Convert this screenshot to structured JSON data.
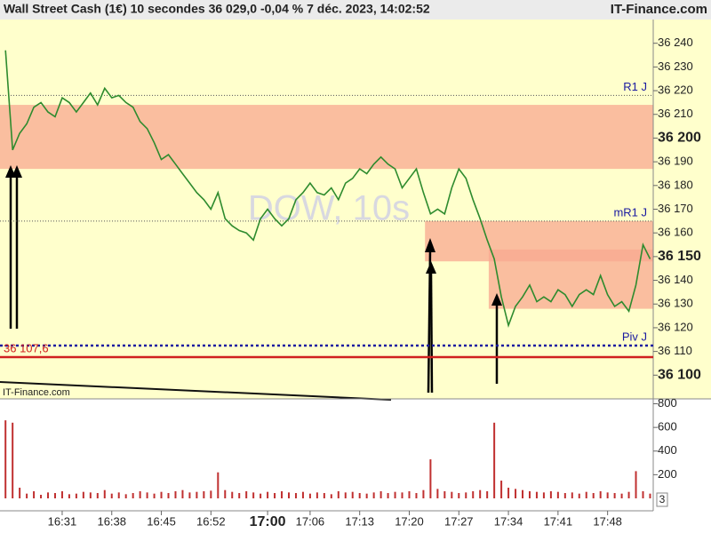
{
  "chart_data": {
    "type": "line",
    "title": "Wall Street Cash (1€) 10 secondes 36 029,0 -0,04 % 7 déc. 2023, 14:02:52",
    "source": "IT-Finance.com",
    "credit": "IT-Finance.com",
    "watermark": "DOW, 10s",
    "color": "#2e8b2e",
    "x": [
      "16:23",
      "16:24",
      "16:25",
      "16:26",
      "16:27",
      "16:28",
      "16:29",
      "16:30",
      "16:31",
      "16:32",
      "16:33",
      "16:34",
      "16:35",
      "16:36",
      "16:37",
      "16:38",
      "16:39",
      "16:40",
      "16:41",
      "16:42",
      "16:43",
      "16:44",
      "16:45",
      "16:46",
      "16:47",
      "16:48",
      "16:49",
      "16:50",
      "16:51",
      "16:52",
      "16:53",
      "16:54",
      "16:55",
      "16:56",
      "16:57",
      "16:58",
      "16:59",
      "17:00",
      "17:01",
      "17:02",
      "17:03",
      "17:04",
      "17:05",
      "17:06",
      "17:07",
      "17:08",
      "17:09",
      "17:10",
      "17:11",
      "17:12",
      "17:13",
      "17:14",
      "17:15",
      "17:16",
      "17:17",
      "17:18",
      "17:19",
      "17:20",
      "17:21",
      "17:22",
      "17:23",
      "17:24",
      "17:25",
      "17:26",
      "17:27",
      "17:28",
      "17:29",
      "17:30",
      "17:31",
      "17:32",
      "17:33",
      "17:34",
      "17:35",
      "17:36",
      "17:37",
      "17:38",
      "17:39",
      "17:40",
      "17:41",
      "17:42",
      "17:43",
      "17:44",
      "17:45",
      "17:46",
      "17:47",
      "17:48",
      "17:49",
      "17:50",
      "17:51",
      "17:52",
      "17:53",
      "17:54"
    ],
    "values": [
      36237,
      36195,
      36202,
      36206,
      36213,
      36215,
      36211,
      36209,
      36217,
      36215,
      36211,
      36215,
      36219,
      36214,
      36221,
      36217,
      36218,
      36215,
      36213,
      36207,
      36204,
      36198,
      36191,
      36193,
      36189,
      36185,
      36181,
      36177,
      36174,
      36170,
      36177,
      36166,
      36163,
      36161,
      36160,
      36157,
      36166,
      36170,
      36166,
      36163,
      36166,
      36174,
      36177,
      36181,
      36177,
      36176,
      36179,
      36174,
      36181,
      36183,
      36187,
      36185,
      36189,
      36192,
      36189,
      36187,
      36179,
      36183,
      36187,
      36177,
      36168,
      36170,
      36168,
      36179,
      36187,
      36183,
      36174,
      36166,
      36157,
      36149,
      36133,
      36121,
      36129,
      36133,
      36138,
      36131,
      36133,
      36131,
      36136,
      36134,
      36129,
      36134,
      36136,
      36134,
      36142,
      36134,
      36129,
      36131,
      36127,
      36138,
      36155,
      36149
    ],
    "ylim": [
      36090,
      36250
    ],
    "yticks": [
      {
        "value": 36240,
        "label": "36 240"
      },
      {
        "value": 36230,
        "label": "36 230"
      },
      {
        "value": 36220,
        "label": "36 220"
      },
      {
        "value": 36210,
        "label": "36 210"
      },
      {
        "value": 36200,
        "label": "36 200"
      },
      {
        "value": 36190,
        "label": "36 190"
      },
      {
        "value": 36180,
        "label": "36 180"
      },
      {
        "value": 36170,
        "label": "36 170"
      },
      {
        "value": 36160,
        "label": "36 160"
      },
      {
        "value": 36150,
        "label": "36 150"
      },
      {
        "value": 36140,
        "label": "36 140"
      },
      {
        "value": 36130,
        "label": "36 130"
      },
      {
        "value": 36120,
        "label": "36 120"
      },
      {
        "value": 36110,
        "label": "36 110"
      },
      {
        "value": 36100,
        "label": "36 100"
      }
    ],
    "xticks": [
      "16:31",
      "16:38",
      "16:45",
      "16:52",
      "17:00",
      "17:06",
      "17:13",
      "17:20",
      "17:27",
      "17:34",
      "17:41",
      "17:48"
    ],
    "levels": [
      {
        "label": "R1 J",
        "value": 36218,
        "color": "#555555",
        "style": "dotted"
      },
      {
        "label": "mR1 J",
        "value": 36165,
        "color": "#555555",
        "style": "dotted"
      },
      {
        "label": "Piv J",
        "value": 36112.5,
        "color": "#1a1aa0",
        "style": "dotted-bold"
      },
      {
        "label": "36 107,6",
        "value": 36107.6,
        "color": "#d02020",
        "style": "solid"
      }
    ],
    "zones": [
      {
        "high": 36214,
        "low": 36187,
        "start": "16:23",
        "color": "#f8a890"
      },
      {
        "high": 36165,
        "low": 36148,
        "start": "17:23",
        "color": "#f8a890"
      },
      {
        "high": 36153,
        "low": 36128,
        "start": "17:32",
        "color": "#f8a890"
      }
    ],
    "volume": {
      "color": "#c03030",
      "ylim": [
        0,
        834
      ],
      "yticks": [
        200,
        400,
        600,
        800
      ],
      "current": 3,
      "values": [
        660,
        640,
        90,
        40,
        60,
        30,
        50,
        45,
        60,
        35,
        40,
        55,
        50,
        45,
        70,
        40,
        50,
        35,
        45,
        60,
        50,
        40,
        55,
        45,
        60,
        70,
        50,
        55,
        60,
        65,
        220,
        70,
        55,
        45,
        60,
        50,
        40,
        55,
        45,
        60,
        50,
        45,
        55,
        40,
        50,
        45,
        35,
        60,
        50,
        55,
        45,
        40,
        50,
        60,
        45,
        55,
        50,
        60,
        45,
        70,
        330,
        80,
        60,
        55,
        45,
        50,
        60,
        70,
        60,
        640,
        150,
        90,
        80,
        70,
        60,
        55,
        50,
        60,
        55,
        45,
        50,
        40,
        55,
        45,
        60,
        50,
        45,
        40,
        55,
        230,
        60,
        40
      ]
    }
  }
}
